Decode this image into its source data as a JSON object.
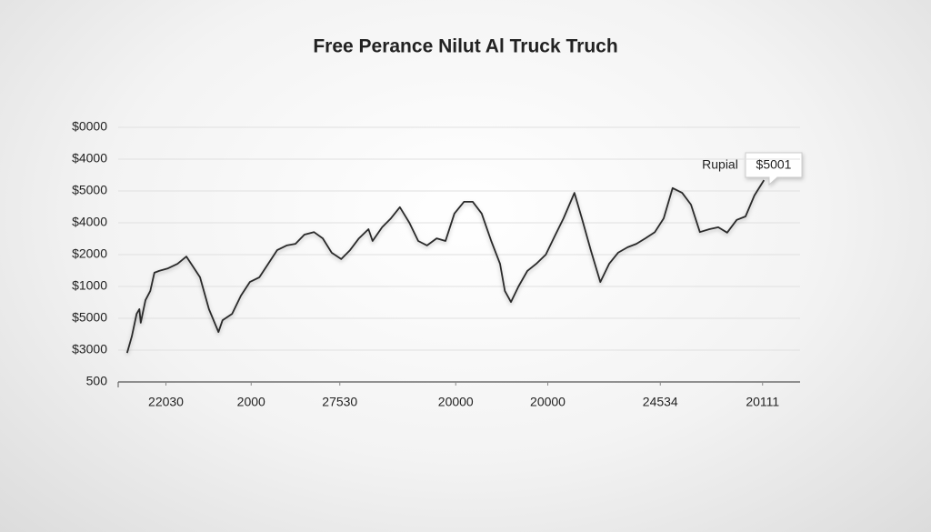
{
  "chart_data": {
    "type": "line",
    "title": "Free Perance Nilut Al Truck Truch",
    "annotations": [
      "Rupial",
      "$5001"
    ],
    "color": "#2a2a2a",
    "grid": true,
    "xlim": [
      0,
      100
    ],
    "xticks": [
      {
        "value": 7,
        "label": "22030"
      },
      {
        "value": 19.5,
        "label": "2000"
      },
      {
        "value": 32.5,
        "label": "27530"
      },
      {
        "value": 49.5,
        "label": "20000"
      },
      {
        "value": 63,
        "label": "20000"
      },
      {
        "value": 79.5,
        "label": "24534"
      },
      {
        "value": 94.5,
        "label": "20111"
      }
    ],
    "ylim": [
      0,
      8
    ],
    "yticks": [
      {
        "value": 0,
        "label": "500"
      },
      {
        "value": 1,
        "label": "$3000"
      },
      {
        "value": 2,
        "label": "$5000"
      },
      {
        "value": 3,
        "label": "$1000"
      },
      {
        "value": 4,
        "label": "$2000"
      },
      {
        "value": 5,
        "label": "$4000"
      },
      {
        "value": 6,
        "label": "$5000"
      },
      {
        "value": 7,
        "label": "$4000"
      },
      {
        "value": 8,
        "label": "$0000"
      }
    ],
    "x": [
      1.3,
      2,
      2.7,
      3.1,
      3.3,
      4,
      4.7,
      5.3,
      6,
      7.3,
      8.7,
      10,
      10.7,
      12,
      13.3,
      14.7,
      15.3,
      16.7,
      18,
      19.3,
      20.7,
      22,
      23.3,
      24.7,
      26,
      27.3,
      28.7,
      30,
      31.3,
      32.7,
      34,
      35.3,
      36.7,
      37.3,
      38.7,
      40,
      41.3,
      42.7,
      44,
      45.3,
      46.7,
      48,
      49.3,
      50.7,
      52,
      53.3,
      54.7,
      56,
      56.7,
      57.6,
      58.7,
      60,
      61.3,
      62.7,
      64,
      65.3,
      66.9,
      68,
      69.3,
      70.7,
      72,
      73.3,
      74.7,
      76,
      77.3,
      78.7,
      80,
      81.3,
      82.7,
      84,
      85.3,
      86.7,
      88,
      89.3,
      90.7,
      92,
      93.3,
      94.7
    ],
    "values": [
      0.91,
      1.43,
      2.14,
      2.29,
      1.86,
      2.57,
      2.86,
      3.43,
      3.49,
      3.57,
      3.71,
      3.94,
      3.71,
      3.29,
      2.29,
      1.57,
      1.94,
      2.14,
      2.71,
      3.14,
      3.29,
      3.71,
      4.14,
      4.29,
      4.34,
      4.63,
      4.71,
      4.51,
      4.06,
      3.86,
      4.14,
      4.51,
      4.8,
      4.43,
      4.86,
      5.14,
      5.49,
      5,
      4.43,
      4.29,
      4.51,
      4.43,
      5.29,
      5.66,
      5.66,
      5.29,
      4.43,
      3.71,
      2.86,
      2.51,
      3,
      3.49,
      3.71,
      4,
      4.57,
      5.14,
      5.94,
      5.14,
      4.14,
      3.14,
      3.71,
      4.06,
      4.23,
      4.34,
      4.51,
      4.71,
      5.14,
      6.09,
      5.94,
      5.57,
      4.71,
      4.8,
      4.86,
      4.69,
      5.09,
      5.2,
      5.86,
      6.34
    ]
  }
}
